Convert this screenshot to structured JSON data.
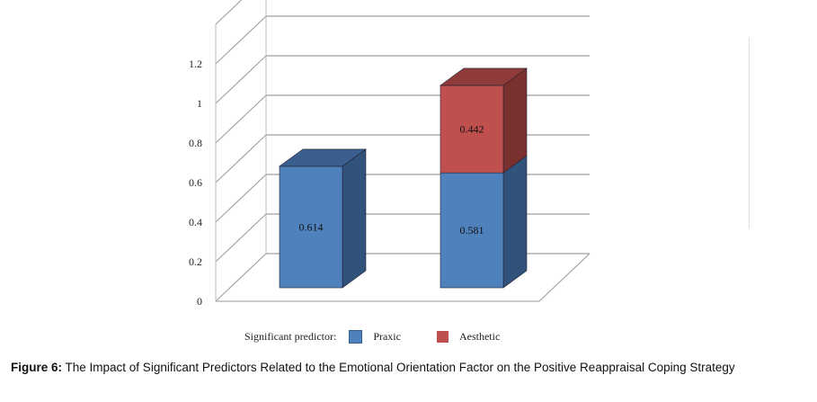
{
  "chart_data": {
    "type": "bar",
    "stacked": true,
    "three_d": true,
    "categories": [
      "",
      ""
    ],
    "series": [
      {
        "name": "Praxic",
        "values": [
          0.614,
          0.581
        ],
        "color": "#4f81bd"
      },
      {
        "name": "Aesthetic",
        "values": [
          null,
          0.442
        ],
        "color": "#c0504d"
      }
    ],
    "data_labels": [
      [
        "0.614",
        "0.581"
      ],
      [
        null,
        "0.442"
      ]
    ],
    "ylim": [
      0,
      1.2
    ],
    "yticks": [
      "0",
      "0.2",
      "0.4",
      "0.6",
      "0.8",
      "1",
      "1.2"
    ],
    "grid": true,
    "legend": {
      "title": "Significant predictor:",
      "placement": "bottom"
    }
  },
  "caption": {
    "label": "Figure 6:",
    "text": " The Impact of Significant Predictors Related to the Emotional Orientation Factor on the Positive Reappraisal Coping Strategy"
  }
}
